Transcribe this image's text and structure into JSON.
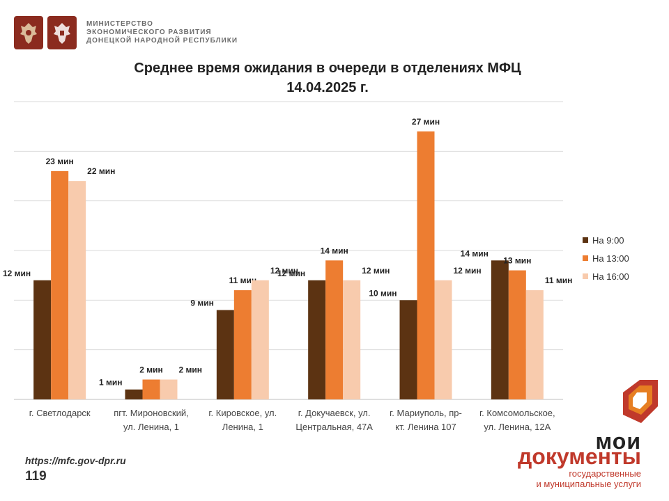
{
  "header": {
    "ministry_lines": [
      "МИНИСТЕРСТВО",
      "ЭКОНОМИЧЕСКОГО РАЗВИТИЯ",
      "ДОНЕЦКОЙ НАРОДНОЙ РЕСПУБЛИКИ"
    ]
  },
  "title_lines": [
    "Среднее время ожидания в очереди в отделениях МФЦ",
    "14.04.2025 г."
  ],
  "colors": {
    "s1": "#5c3312",
    "s2": "#ed7d31",
    "s3": "#f8cbad",
    "grid": "#d9d9d9",
    "brand": "#c0392b"
  },
  "chart_data": {
    "type": "bar",
    "title": "Среднее время ожидания в очереди в отделениях МФЦ 14.04.2025 г.",
    "categories": [
      [
        "г. Светлодарск"
      ],
      [
        "пгт. Мироновский,",
        "ул. Ленина, 1"
      ],
      [
        "г. Кировское, ул.",
        "Ленина, 1"
      ],
      [
        "г. Докучаевск, ул.",
        "Центральная, 47А"
      ],
      [
        "г. Мариуполь, пр-",
        "кт. Ленина 107"
      ],
      [
        "г. Комсомольское,",
        "ул. Ленина, 12А"
      ]
    ],
    "series": [
      {
        "name": "На 9:00",
        "values": [
          12,
          1,
          9,
          12,
          10,
          14
        ]
      },
      {
        "name": "На 13:00",
        "values": [
          23,
          2,
          11,
          14,
          27,
          13
        ]
      },
      {
        "name": "На 16:00",
        "values": [
          22,
          2,
          12,
          12,
          12,
          11
        ]
      }
    ],
    "unit": "мин",
    "ylim": [
      0,
      30
    ],
    "gridlines": [
      0,
      5,
      10,
      15,
      20,
      25,
      30
    ],
    "legend_position": "right"
  },
  "footer": {
    "url": "https://mfc.gov-dpr.ru",
    "page": "119",
    "brand_line1": "мои",
    "brand_line2": "документы",
    "brand_sub1": "государственные",
    "brand_sub2": "и муниципальные услуги"
  }
}
